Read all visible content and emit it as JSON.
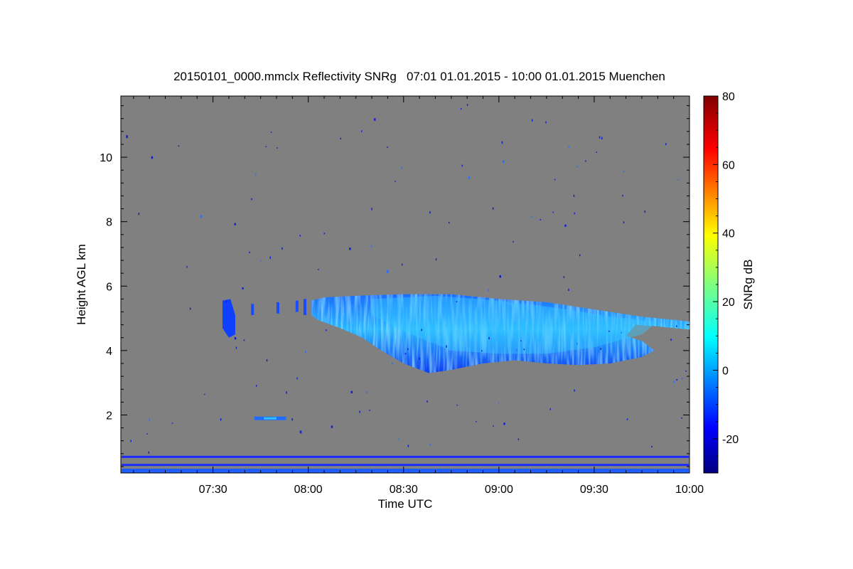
{
  "chart_data": {
    "type": "heatmap",
    "title": "20150101_0000.mmclx Reflectivity SNRg   07:01 01.01.2015 - 10:00 01.01.2015 Muenchen",
    "xlabel": "Time UTC",
    "ylabel": "Height AGL km",
    "x_unit": "minutes UTC",
    "xlim": [
      421,
      600
    ],
    "ylim": [
      0.2,
      11.9
    ],
    "x_ticks": [
      {
        "value": 450,
        "label": "07:30"
      },
      {
        "value": 480,
        "label": "08:00"
      },
      {
        "value": 510,
        "label": "08:30"
      },
      {
        "value": 540,
        "label": "09:00"
      },
      {
        "value": 570,
        "label": "09:30"
      },
      {
        "value": 600,
        "label": "10:00"
      }
    ],
    "y_ticks": [
      {
        "value": 2,
        "label": "2"
      },
      {
        "value": 4,
        "label": "4"
      },
      {
        "value": 6,
        "label": "6"
      },
      {
        "value": 8,
        "label": "8"
      },
      {
        "value": 10,
        "label": "10"
      }
    ],
    "background_color": "#808080",
    "colorbar": {
      "label": "SNRg dB",
      "min": -30,
      "max": 80,
      "ticks": [
        {
          "value": -20,
          "label": "-20"
        },
        {
          "value": 0,
          "label": "0"
        },
        {
          "value": 20,
          "label": "20"
        },
        {
          "value": 40,
          "label": "40"
        },
        {
          "value": 60,
          "label": "60"
        },
        {
          "value": 80,
          "label": "80"
        }
      ],
      "colormap": "jet"
    },
    "cloud_features": [
      {
        "name": "main-cloud-layer",
        "x_start": 481,
        "x_end": 600,
        "height_top": 5.7,
        "height_base": 3.3,
        "snr_peak": 5
      },
      {
        "name": "early-cloud-fragment",
        "x_start": 453,
        "x_end": 457,
        "height_top": 5.6,
        "height_base": 4.4,
        "snr_peak": -10
      },
      {
        "name": "low-echo-line",
        "x_start": 463,
        "x_end": 473,
        "height": 1.9,
        "snr_peak": 0
      }
    ],
    "surface_clutter_bands_km": [
      0.7,
      0.45,
      0.3
    ]
  }
}
